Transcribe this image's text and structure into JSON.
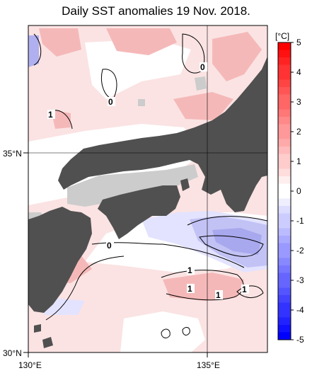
{
  "title": "Daily SST anomalies 19 Nov. 2018.",
  "axes": {
    "lon_labels": [
      "130°E",
      "135°E"
    ],
    "lat_labels": [
      "35°N",
      "30°N"
    ]
  },
  "colorbar": {
    "unit": "[°C]",
    "ticks": [
      "5",
      "4",
      "3",
      "2",
      "1",
      "0",
      "-1",
      "-2",
      "-3",
      "-4",
      "-5"
    ],
    "colors": [
      "#ff0000",
      "#ff3333",
      "#ff6666",
      "#ff9999",
      "#ffcccc",
      "#ffffff",
      "#ccccff",
      "#9999ff",
      "#6666ff",
      "#3333ff",
      "#0000ff"
    ]
  },
  "contour_labels": [
    "0",
    "0",
    "1",
    "0",
    "1",
    "1",
    "1",
    "1"
  ],
  "colors": {
    "land": "#505050",
    "no_data": "#cccccc",
    "warm_light": "#fde0e0",
    "warm_mid": "#f7b8b8",
    "cool_light": "#e6e6ff",
    "cool_mid": "#c2c2f5",
    "cool_dark": "#a6a6ee"
  }
}
